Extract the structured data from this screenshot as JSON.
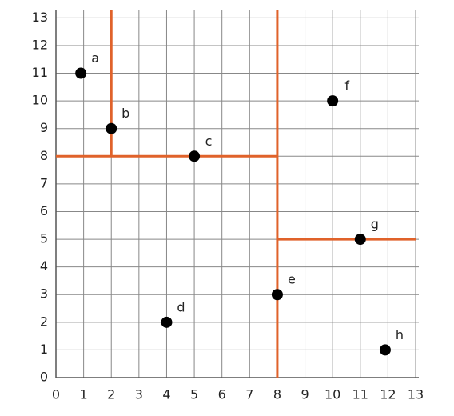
{
  "chart_data": {
    "type": "scatter",
    "x": [
      0.9,
      2,
      5,
      4,
      8,
      10,
      11,
      11.9
    ],
    "y": [
      11,
      9,
      8,
      2,
      3,
      10,
      5,
      1
    ],
    "labels": [
      "a",
      "b",
      "c",
      "d",
      "e",
      "f",
      "g",
      "h"
    ],
    "color": "#000000",
    "lines": [
      {
        "x": [
          2,
          2
        ],
        "y": [
          8,
          13.3
        ]
      },
      {
        "x": [
          8,
          8
        ],
        "y": [
          0,
          13.3
        ]
      },
      {
        "x": [
          0,
          8
        ],
        "y": [
          8,
          8
        ]
      },
      {
        "x": [
          8,
          13
        ],
        "y": [
          5,
          5
        ]
      }
    ],
    "line_color": "#e0622a",
    "xlim": [
      0,
      13
    ],
    "ylim": [
      0,
      13.3
    ],
    "xticks": [
      0,
      1,
      2,
      3,
      4,
      5,
      6,
      7,
      8,
      9,
      10,
      11,
      12,
      13
    ],
    "yticks": [
      0,
      1,
      2,
      3,
      4,
      5,
      6,
      7,
      8,
      9,
      10,
      11,
      12,
      13
    ],
    "grid": true
  }
}
